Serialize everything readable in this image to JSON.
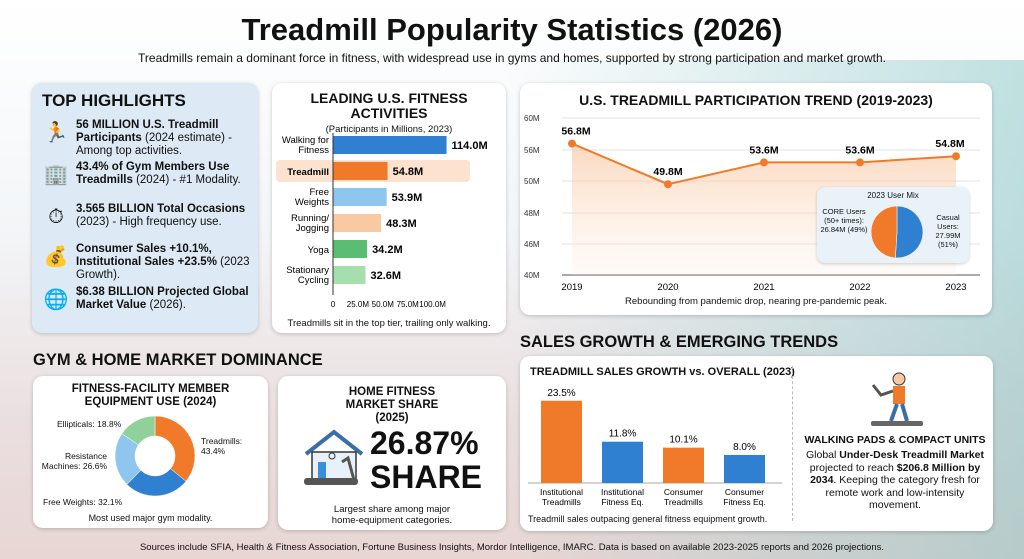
{
  "title": "Treadmill Popularity Statistics (2026)",
  "subtitle": "Treadmills remain a dominant force in fitness, with widespread use in gyms and homes, supported by strong participation and market growth.",
  "highlights": {
    "heading": "TOP HIGHLIGHTS",
    "items": [
      {
        "icon": "runner-icon",
        "bold": "56 MILLION U.S. Treadmill Participants",
        "rest": " (2024 estimate) - Among top activities."
      },
      {
        "icon": "gym-building-icon",
        "bold": "43.4% of Gym Members Use Treadmills",
        "rest": " (2024) - #1 Modality."
      },
      {
        "icon": "stopwatch-calendar-icon",
        "bold": "3.565 BILLION Total Occasions",
        "rest": " (2023) - High frequency use."
      },
      {
        "icon": "money-bag-growth-icon",
        "bold": "Consumer Sales +10.1%, Institutional Sales +23.5%",
        "rest": " (2023 Growth)."
      },
      {
        "icon": "globe-icon",
        "bold": "$6.38 BILLION Projected Global Market Value",
        "rest": " (2026)."
      }
    ]
  },
  "sections": {
    "gym_home": "GYM & HOME MARKET DOMINANCE",
    "sales": "SALES GROWTH & EMERGING TRENDS"
  },
  "home_share": {
    "title": "HOME FITNESS MARKET SHARE (2025)",
    "value": "26.87%",
    "label": "SHARE",
    "caption": "Largest share among major home-equipment categories.",
    "icon": "house-treadmill-icon"
  },
  "walking_pads": {
    "icon": "person-on-treadmill-icon",
    "title": "WALKING PADS & COMPACT UNITS",
    "pre": "Global ",
    "bold1": "Under-Desk Treadmill Market",
    "mid": " projected to reach ",
    "bold2": "$206.8 Million by 2034",
    "post": ". Keeping the category fresh for remote work and low-intensity movement."
  },
  "footer": "Sources include SFIA, Health & Fitness Association, Fortune Business Insights, Mordor Intelligence, IMARC. Data is based on available 2023-2025 reports and 2026 projections.",
  "chart_data": [
    {
      "type": "bar",
      "orientation": "horizontal",
      "title": "LEADING U.S. FITNESS ACTIVITIES",
      "subtitle": "(Participants in Millions, 2023)",
      "categories": [
        "Walking for Fitness",
        "Treadmill",
        "Free Weights",
        "Running/ Jogging",
        "Yoga",
        "Stationary Cycling"
      ],
      "values": [
        114.0,
        54.8,
        53.9,
        48.3,
        34.2,
        32.6
      ],
      "data_labels": [
        "114.0M",
        "54.8M",
        "53.9M",
        "48.3M",
        "34.2M",
        "32.6M"
      ],
      "colors": [
        "#2f80d0",
        "#f07a2a",
        "#8fc6ee",
        "#f9c9a2",
        "#5bbd72",
        "#a6dfae"
      ],
      "highlighted": "Treadmill",
      "xticks": [
        "0",
        "25.0M",
        "50.0M",
        "75.0M",
        "100.0M"
      ],
      "xlim": [
        0,
        120
      ],
      "caption": "Treadmills sit in the top tier, trailing only walking."
    },
    {
      "type": "area",
      "title": "U.S. TREADMILL PARTICIPATION TREND (2019-2023)",
      "x": [
        "2019",
        "2020",
        "2021",
        "2022",
        "2023"
      ],
      "values": [
        56.8,
        49.8,
        53.6,
        53.6,
        54.8
      ],
      "data_labels": [
        "56.8M",
        "49.8M",
        "53.6M",
        "53.6M",
        "54.8M"
      ],
      "yticks": [
        "60M",
        "56M",
        "50M",
        "48M",
        "46M",
        "40M"
      ],
      "grid": true,
      "color": "#f07a2a",
      "caption": "Rebounding from pandemic drop, nearing pre-pandemic peak."
    },
    {
      "type": "pie",
      "title": "2023 User Mix",
      "legend_placement": "inset",
      "slices": [
        {
          "label": "CORE Users (50+ times): 26.84M (49%)",
          "value": 49,
          "color": "#f07a2a"
        },
        {
          "label": "Casual Users: 27.99M (51%)",
          "value": 51,
          "color": "#2f80d0"
        }
      ]
    },
    {
      "type": "pie",
      "donut": true,
      "title": "FITNESS-FACILITY MEMBER EQUIPMENT USE (2024)",
      "slices": [
        {
          "label": "Treadmills: 43.4%",
          "value": 43.4,
          "color": "#f07a2a"
        },
        {
          "label": "Free Weights: 32.1%",
          "value": 32.1,
          "color": "#2f80d0"
        },
        {
          "label": "Resistance Machines: 26.6%",
          "value": 26.6,
          "color": "#8fc6ee"
        },
        {
          "label": "Ellipticals: 18.8%",
          "value": 18.8,
          "color": "#8fd19a"
        }
      ],
      "caption": "Most used major gym modality."
    },
    {
      "type": "bar",
      "title": "TREADMILL SALES GROWTH vs. OVERALL (2023)",
      "categories": [
        "Institutional Treadmills",
        "Institutional Fitness Eq.",
        "Consumer Treadmills",
        "Consumer Fitness Eq."
      ],
      "values": [
        23.5,
        11.8,
        10.1,
        8.0
      ],
      "data_labels": [
        "23.5%",
        "11.8%",
        "10.1%",
        "8.0%"
      ],
      "colors": [
        "#f07a2a",
        "#2f80d0",
        "#f07a2a",
        "#2f80d0"
      ],
      "caption": "Treadmill sales outpacing general fitness equipment growth."
    }
  ]
}
